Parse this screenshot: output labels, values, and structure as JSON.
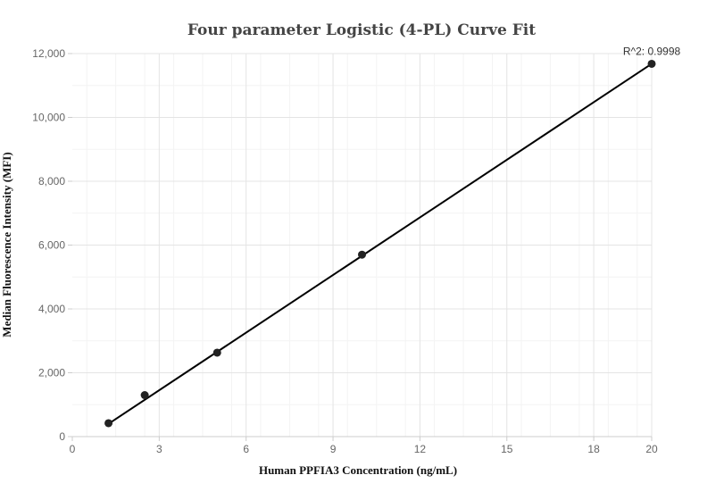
{
  "chart_data": {
    "type": "scatter",
    "title": "Four parameter Logistic (4-PL) Curve Fit",
    "xlabel": "Human PPFIA3 Concentration  (ng/mL)",
    "ylabel": "Median Fluorescence Intensity (MFI)",
    "xlim": [
      0,
      20
    ],
    "ylim": [
      0,
      12000
    ],
    "x_ticks": [
      0,
      3,
      6,
      9,
      12,
      15,
      18,
      20
    ],
    "x_tick_labels": [
      "0",
      "3",
      "6",
      "9",
      "12",
      "15",
      "18",
      "20"
    ],
    "y_ticks": [
      0,
      2000,
      4000,
      6000,
      8000,
      10000,
      12000
    ],
    "y_tick_labels": [
      "0",
      "2,000",
      "4,000",
      "6,000",
      "8,000",
      "10,000",
      "12,000"
    ],
    "grid": true,
    "series": [
      {
        "x": [
          1.25,
          2.5,
          5,
          10,
          20
        ],
        "y": [
          420,
          1300,
          2630,
          5700,
          11680
        ],
        "color": "#222222"
      }
    ],
    "fit_line": {
      "x": [
        1.25,
        20
      ],
      "y": [
        400,
        11680
      ],
      "color": "#000000"
    },
    "annotation": "R^2: 0.9998"
  }
}
